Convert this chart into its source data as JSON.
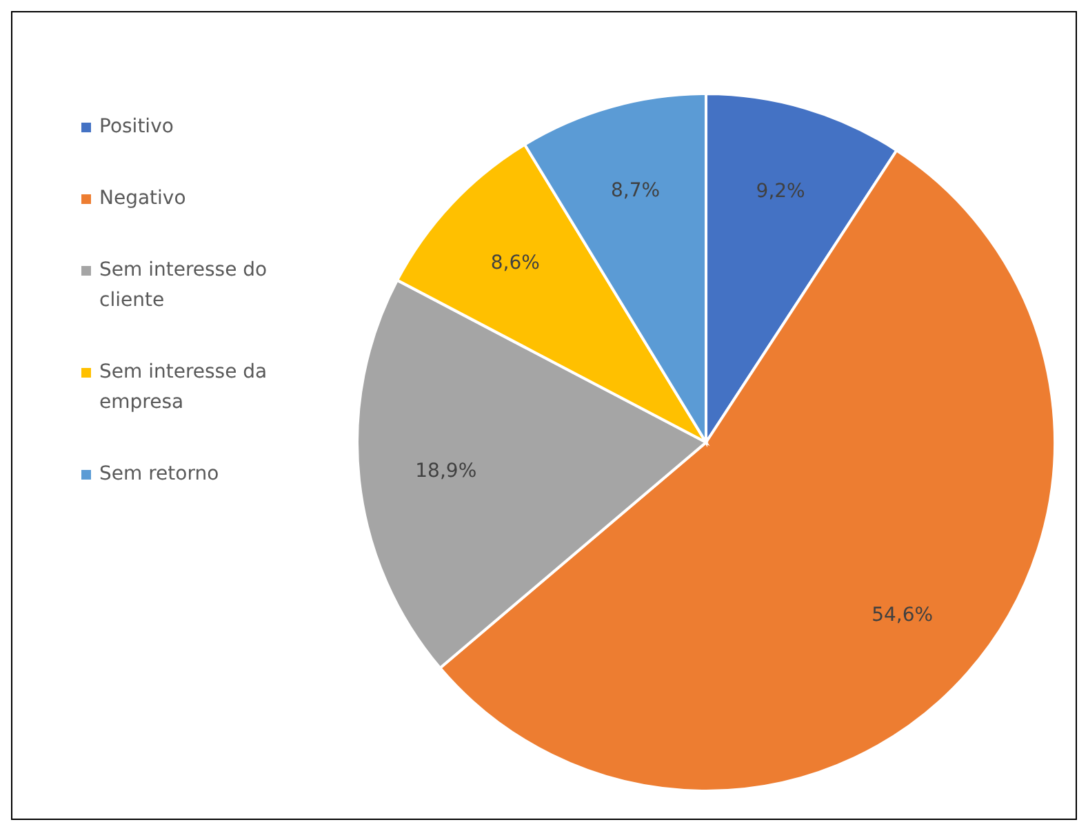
{
  "chart_data": {
    "type": "pie",
    "categories": [
      "Positivo",
      "Negativo",
      "Sem interesse do cliente",
      "Sem interesse da empresa",
      "Sem retorno"
    ],
    "values": [
      9.2,
      54.6,
      18.9,
      8.6,
      8.7
    ],
    "value_labels": [
      "9,2%",
      "54,6%",
      "18,9%",
      "8,6%",
      "8,7%"
    ],
    "colors": [
      "#4472c4",
      "#ed7d31",
      "#a5a5a5",
      "#ffc000",
      "#5b9bd5"
    ],
    "legend": "top left"
  }
}
